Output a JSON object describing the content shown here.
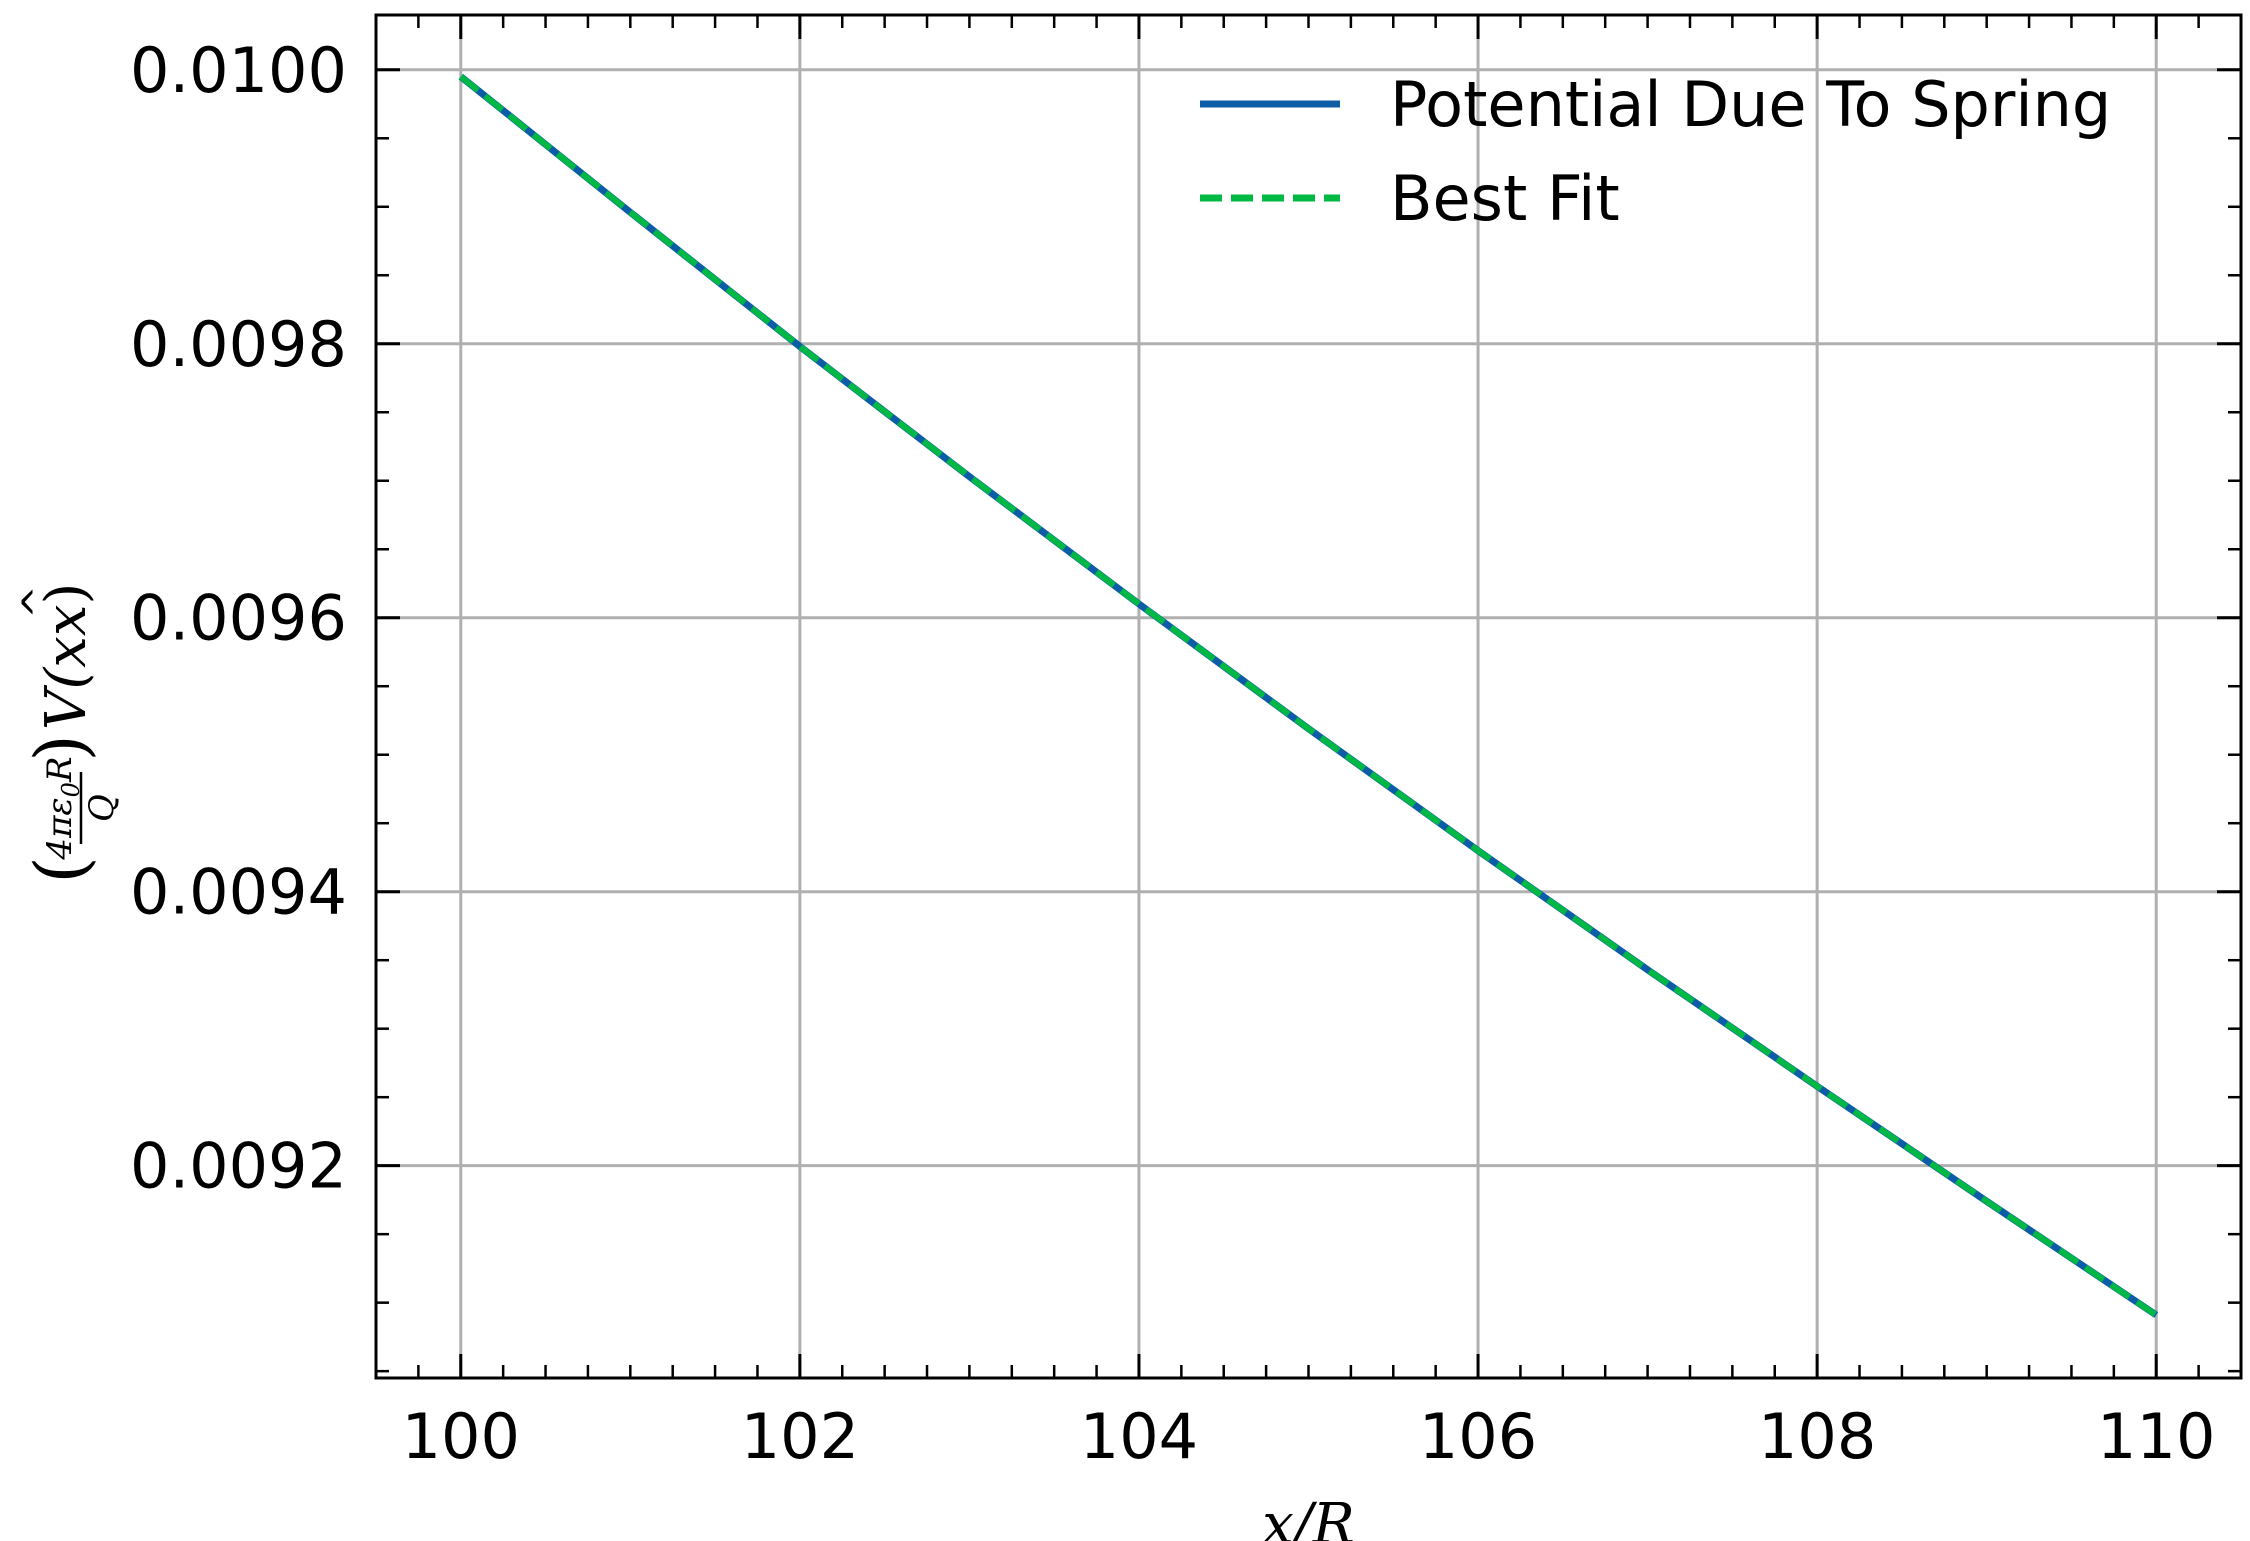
{
  "chart_data": {
    "type": "line",
    "title": "",
    "xlabel": "x/R",
    "ylabel": "(4πε₀R/Q) V(xx̂)",
    "ylabel_parts": {
      "open": "(",
      "num": "4πε",
      "sub": "0",
      "num_end": "R",
      "den": "Q",
      "close": ")",
      "func": "V(x",
      "hat": "x",
      "end": ")"
    },
    "xlim": [
      99.5,
      110.5
    ],
    "ylim": [
      0.009045,
      0.01004
    ],
    "x_ticks": [
      100,
      102,
      104,
      106,
      108,
      110
    ],
    "x_tick_labels": [
      "100",
      "102",
      "104",
      "106",
      "108",
      "110"
    ],
    "y_ticks": [
      0.0092,
      0.0094,
      0.0096,
      0.0098,
      0.01
    ],
    "y_tick_labels": [
      "0.0092",
      "0.0094",
      "0.0096",
      "0.0098",
      "0.0100"
    ],
    "grid": true,
    "legend_placement": "top-right",
    "series": [
      {
        "name": "Potential Due To Spring",
        "color": "#0C5DA5",
        "style": "solid",
        "x": [
          100,
          101,
          102,
          103,
          104,
          105,
          106,
          107,
          108,
          109,
          110
        ],
        "y": [
          0.009995,
          0.009896,
          0.009798,
          0.009703,
          0.00961,
          0.009519,
          0.00943,
          0.009343,
          0.009258,
          0.009174,
          0.009091
        ]
      },
      {
        "name": "Best Fit",
        "color": "#00B945",
        "style": "dashed",
        "x": [
          100,
          101,
          102,
          103,
          104,
          105,
          106,
          107,
          108,
          109,
          110
        ],
        "y": [
          0.009995,
          0.009896,
          0.009798,
          0.009703,
          0.00961,
          0.009519,
          0.00943,
          0.009343,
          0.009258,
          0.009174,
          0.009091
        ]
      }
    ]
  }
}
